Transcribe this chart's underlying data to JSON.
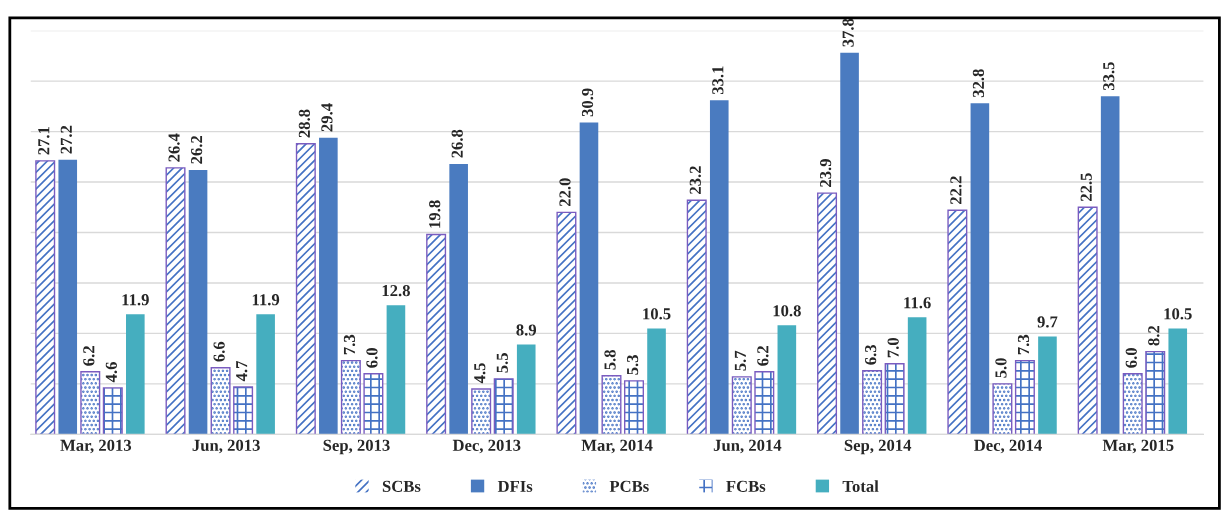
{
  "chart_data": {
    "type": "bar",
    "categories": [
      "Mar, 2013",
      "Jun, 2013",
      "Sep, 2013",
      "Dec, 2013",
      "Mar, 2014",
      "Jun, 2014",
      "Sep, 2014",
      "Dec, 2014",
      "Mar, 2015"
    ],
    "series": [
      {
        "name": "SCBs",
        "color": "#4472c4",
        "values": [
          27.1,
          26.4,
          28.8,
          19.8,
          22.0,
          23.2,
          23.9,
          22.2,
          22.5
        ],
        "value_labels": [
          "27.1",
          "26.4",
          "28.8",
          "19.8",
          "22.0",
          "23.2",
          "23.9",
          "22.2",
          "22.5"
        ]
      },
      {
        "name": "DFIs",
        "color": "#4a7bc0",
        "values": [
          27.2,
          26.2,
          29.4,
          26.8,
          30.9,
          33.1,
          37.8,
          32.8,
          33.5
        ],
        "value_labels": [
          "27.2",
          "26.2",
          "29.4",
          "26.8",
          "30.9",
          "33.1",
          "37.8",
          "32.8",
          "33.5"
        ]
      },
      {
        "name": "PCBs",
        "color": "#4472c4",
        "values": [
          6.2,
          6.6,
          7.3,
          4.5,
          5.8,
          5.7,
          6.3,
          5.0,
          6.0
        ],
        "value_labels": [
          "6.2",
          "6.6",
          "7.3",
          "4.5",
          "5.8",
          "5.7",
          "6.3",
          "5.0",
          "6.0"
        ]
      },
      {
        "name": "FCBs",
        "color": "#4472c4",
        "values": [
          4.6,
          4.7,
          6.0,
          5.5,
          5.3,
          6.2,
          7.0,
          7.3,
          8.2
        ],
        "value_labels": [
          "4.6",
          "4.7",
          "6.0",
          "5.5",
          "5.3",
          "6.2",
          "7.0",
          "7.3",
          "8.2"
        ]
      },
      {
        "name": "Total",
        "color": "#45aebf",
        "values": [
          11.9,
          11.9,
          12.8,
          8.9,
          10.5,
          10.8,
          11.6,
          9.7,
          10.5
        ],
        "value_labels": [
          "11.9",
          "11.9",
          "12.8",
          "8.9",
          "10.5",
          "10.8",
          "11.6",
          "9.7",
          "10.5"
        ]
      }
    ],
    "ylim": [
      0,
      40
    ],
    "yticks": [
      {
        "value": 0,
        "label": null
      },
      {
        "value": 5,
        "label": null
      },
      {
        "value": 10,
        "label": null
      },
      {
        "value": 15,
        "label": null
      },
      {
        "value": 20,
        "label": null
      },
      {
        "value": 25,
        "label": null
      },
      {
        "value": 30,
        "label": null
      },
      {
        "value": 35,
        "label": null
      },
      {
        "value": 40,
        "label": null
      }
    ],
    "tick_labels": "x",
    "grid": "y",
    "legend": "bottom"
  }
}
